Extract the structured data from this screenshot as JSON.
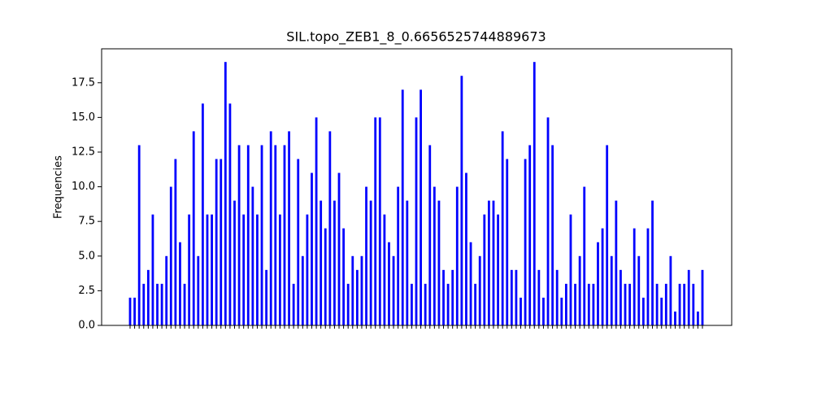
{
  "chart_data": {
    "type": "bar",
    "title": "SIL.topo_ZEB1_8_0.6656525744889673",
    "ylabel": "Frequencies",
    "color": "#0000ff",
    "categories": [
      null,
      null,
      null,
      null,
      null,
      null,
      null,
      null,
      null,
      null,
      null,
      null,
      null,
      null,
      null,
      null,
      null,
      null,
      null,
      null,
      null,
      null,
      null,
      null,
      null,
      null,
      null,
      null,
      null,
      null,
      null,
      null,
      null,
      null,
      null,
      null,
      null,
      null,
      null,
      null,
      null,
      null,
      null,
      null,
      null,
      null,
      null,
      null,
      null,
      null,
      null,
      null,
      null,
      null,
      null,
      null,
      null,
      null,
      null,
      null,
      null,
      null,
      null,
      null,
      null,
      null,
      null,
      null,
      null,
      null,
      null,
      null,
      null,
      null,
      null,
      null,
      null,
      null,
      null,
      null,
      null,
      null,
      null,
      null,
      null,
      null,
      null,
      null,
      null,
      null,
      null,
      null,
      null,
      null,
      null,
      null,
      null,
      null,
      null,
      null,
      null,
      null,
      null,
      null,
      null,
      null,
      null,
      null,
      null,
      null,
      null,
      null,
      null,
      null,
      null,
      null,
      null,
      null,
      null,
      null,
      null,
      null,
      null,
      null,
      null,
      null,
      null
    ],
    "values": [
      2,
      2,
      13,
      3,
      4,
      8,
      3,
      3,
      5,
      10,
      12,
      6,
      3,
      8,
      14,
      5,
      16,
      8,
      8,
      12,
      12,
      19,
      16,
      9,
      13,
      8,
      13,
      10,
      8,
      13,
      4,
      14,
      13,
      8,
      13,
      14,
      3,
      12,
      5,
      8,
      11,
      15,
      9,
      7,
      14,
      9,
      11,
      7,
      3,
      5,
      4,
      5,
      10,
      9,
      15,
      15,
      8,
      6,
      5,
      10,
      17,
      9,
      3,
      15,
      17,
      3,
      13,
      10,
      9,
      4,
      3,
      4,
      10,
      18,
      11,
      6,
      3,
      5,
      8,
      9,
      9,
      8,
      14,
      12,
      4,
      4,
      2,
      12,
      13,
      19,
      4,
      2,
      15,
      13,
      4,
      2,
      3,
      8,
      3,
      5,
      10,
      3,
      3,
      6,
      7,
      13,
      5,
      9,
      4,
      3,
      3,
      7,
      5,
      2,
      7,
      9,
      3,
      2,
      3,
      5,
      1,
      3,
      3,
      4,
      3,
      1,
      4
    ],
    "ylim": [
      0,
      19.95
    ],
    "yticks": [
      {
        "value": 0,
        "label": "0.0"
      },
      {
        "value": 2.5,
        "label": "2.5"
      },
      {
        "value": 5,
        "label": "5.0"
      },
      {
        "value": 7.5,
        "label": "7.5"
      },
      {
        "value": 10,
        "label": "10.0"
      },
      {
        "value": 12.5,
        "label": "12.5"
      },
      {
        "value": 15,
        "label": "15.0"
      },
      {
        "value": 17.5,
        "label": "17.5"
      }
    ],
    "grid": false
  }
}
